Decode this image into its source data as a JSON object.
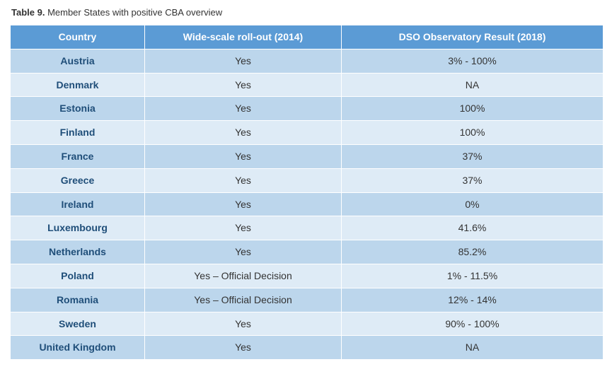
{
  "caption": {
    "prefix": "Table 9.",
    "text": " Member States with positive CBA overview"
  },
  "table": {
    "type": "table",
    "header_bg": "#5b9bd5",
    "header_fg": "#ffffff",
    "row_bg_odd": "#bcd6ec",
    "row_bg_even": "#deebf6",
    "country_cell_fg": "#1f4e79",
    "body_fg": "#333333",
    "border_color": "#ffffff",
    "columns": [
      {
        "key": "country",
        "label": "Country"
      },
      {
        "key": "rollout",
        "label": "Wide-scale roll-out (2014)"
      },
      {
        "key": "dso",
        "label": "DSO Observatory Result (2018)"
      }
    ],
    "rows": [
      {
        "country": "Austria",
        "rollout": "Yes",
        "dso": "3% - 100%"
      },
      {
        "country": "Denmark",
        "rollout": "Yes",
        "dso": "NA"
      },
      {
        "country": "Estonia",
        "rollout": "Yes",
        "dso": "100%"
      },
      {
        "country": "Finland",
        "rollout": "Yes",
        "dso": "100%"
      },
      {
        "country": "France",
        "rollout": "Yes",
        "dso": "37%"
      },
      {
        "country": "Greece",
        "rollout": "Yes",
        "dso": "37%"
      },
      {
        "country": "Ireland",
        "rollout": "Yes",
        "dso": "0%"
      },
      {
        "country": "Luxembourg",
        "rollout": "Yes",
        "dso": "41.6%"
      },
      {
        "country": "Netherlands",
        "rollout": "Yes",
        "dso": "85.2%"
      },
      {
        "country": "Poland",
        "rollout": "Yes – Official Decision",
        "dso": "1% - 11.5%"
      },
      {
        "country": "Romania",
        "rollout": "Yes – Official Decision",
        "dso": "12% - 14%"
      },
      {
        "country": "Sweden",
        "rollout": "Yes",
        "dso": "90% - 100%"
      },
      {
        "country": "United Kingdom",
        "rollout": "Yes",
        "dso": "NA"
      }
    ]
  }
}
